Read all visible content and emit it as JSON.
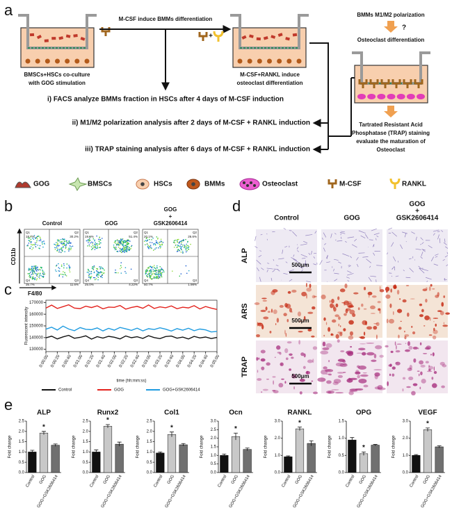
{
  "panel_labels": {
    "a": "a",
    "b": "b",
    "c": "c",
    "d": "d",
    "e": "e"
  },
  "panel_a": {
    "arrow_top": "M-CSF induce BMMs differentiation",
    "well1": [
      "BMSCs+HSCs co-culture",
      "with GOG stimulation"
    ],
    "plus": "+",
    "well2": [
      "M-CSF+RANKL induce",
      "osteoclast differentiation"
    ],
    "polarization": "BMMs M1/M2 polarization",
    "question": "?",
    "osteoclast": "Osteoclast differentiation",
    "trap": [
      "Tartrated Resistant Acid",
      "Phosphatase (TRAP) staining",
      "evaluate the maturation of",
      "Osteoclast"
    ],
    "steps": [
      "i) FACS analyze BMMs fraction in HSCs after 4 days of M-CSF induction",
      "ii) M1/M2 polarization analysis after 2 days of M-CSF + RANKL induction",
      "iii) TRAP staining analysis after 6 days of M-CSF + RANKL induction"
    ]
  },
  "legend": [
    "GOG",
    "BMSCs",
    "HSCs",
    "BMMs",
    "Osteoclast",
    "M-CSF",
    "RANKL"
  ],
  "panel_b": {
    "xlabel": "F4/80",
    "ylabel": "CD11b",
    "quadrant_names": [
      "Q1",
      "Q2",
      "Q3",
      "Q4"
    ],
    "columns": [
      {
        "title": [
          "Control"
        ],
        "quadrants": [
          "18.7%",
          "30.2%",
          "11.6%",
          "35.7%"
        ]
      },
      {
        "title": [
          "GOG"
        ],
        "quadrants": [
          "19.6%",
          "51.4%",
          "4.22%",
          "25.0%"
        ]
      },
      {
        "title": [
          "GOG",
          "+",
          "GSK2606414"
        ],
        "quadrants": [
          "20.1%",
          "26.6%",
          "1.98%",
          "50.7%"
        ]
      }
    ]
  },
  "panel_d": {
    "columns": [
      [
        "Control"
      ],
      [
        "GOG"
      ],
      [
        "GOG",
        "+",
        "GSK2606414"
      ]
    ],
    "rows": [
      "ALP",
      "ARS",
      "TRAP"
    ],
    "scale_bar": "500μm"
  },
  "chart_data": [
    {
      "type": "line",
      "ylabel": "Fluorescent intensity",
      "xlabel": "time (hh:mm:ss)",
      "x": [
        0,
        10,
        20,
        30,
        40,
        50,
        60,
        70,
        80,
        90,
        100,
        110,
        120,
        130,
        140,
        150,
        160,
        170,
        180,
        190,
        200,
        210,
        220,
        230,
        240,
        250,
        260,
        270,
        280,
        290,
        300
      ],
      "xlim": [
        0,
        300
      ],
      "xticks": [
        {
          "value": 0,
          "label": "0:00:00"
        },
        {
          "value": 20,
          "label": "0:00:20"
        },
        {
          "value": 40,
          "label": "0:00:40"
        },
        {
          "value": 60,
          "label": "0:01:00"
        },
        {
          "value": 80,
          "label": "0:01:20"
        },
        {
          "value": 100,
          "label": "0:01:40"
        },
        {
          "value": 120,
          "label": "0:02:00"
        },
        {
          "value": 140,
          "label": "0:02:20"
        },
        {
          "value": 160,
          "label": "0:02:40"
        },
        {
          "value": 180,
          "label": "0:03:00"
        },
        {
          "value": 200,
          "label": "0:03:20"
        },
        {
          "value": 220,
          "label": "0:03:40"
        },
        {
          "value": 240,
          "label": "0:04:00"
        },
        {
          "value": 260,
          "label": "0:04:20"
        },
        {
          "value": 280,
          "label": "0:04:40"
        },
        {
          "value": 300,
          "label": "0:05:00"
        }
      ],
      "ylim": [
        128000,
        172000
      ],
      "yticks": [
        130000,
        140000,
        150000,
        160000,
        170000
      ],
      "series": [
        {
          "name": "Control",
          "color": "#111111",
          "values": [
            139800,
            141200,
            138900,
            140600,
            141900,
            139400,
            140200,
            141500,
            138700,
            140800,
            139600,
            141100,
            140300,
            138900,
            141400,
            139900,
            140700,
            139300,
            141600,
            140000,
            139100,
            140900,
            141300,
            139500,
            140400,
            138800,
            141000,
            139700,
            140500,
            139200,
            140100
          ]
        },
        {
          "name": "GOG",
          "color": "#e3211c",
          "values": [
            165200,
            167800,
            164900,
            166500,
            168100,
            165300,
            164800,
            166900,
            165700,
            167200,
            164600,
            166100,
            165900,
            167500,
            164300,
            165800,
            166700,
            165100,
            167900,
            164900,
            166300,
            165500,
            167100,
            164700,
            166000,
            165400,
            167300,
            164500,
            166600,
            165200,
            164100
          ]
        },
        {
          "name": "GOG+GSK2606414",
          "color": "#1e9be0",
          "values": [
            147200,
            148900,
            146500,
            149800,
            147300,
            145900,
            148600,
            147100,
            146800,
            148300,
            145700,
            147900,
            146400,
            148700,
            147500,
            146200,
            148100,
            145800,
            147600,
            146900,
            148400,
            147200,
            145600,
            147700,
            146300,
            148000,
            145900,
            147300,
            146600,
            144800,
            145300
          ]
        }
      ]
    },
    {
      "type": "bar",
      "title": "ALP",
      "ylabel": "Fold change",
      "categories": [
        "Control",
        "GOG",
        "GOG+GSK2606414"
      ],
      "colors": [
        "#111111",
        "#c8c8c8",
        "#707070"
      ],
      "values": [
        1.0,
        1.92,
        1.33
      ],
      "errors": [
        0.08,
        0.08,
        0.06
      ],
      "ylim": [
        0,
        2.5
      ],
      "yticks": [
        {
          "value": 0,
          "label": "0.0"
        },
        {
          "value": 0.5,
          "label": "0.5"
        },
        {
          "value": 1,
          "label": "1.0"
        },
        {
          "value": 1.5,
          "label": "1.5"
        },
        {
          "value": 2,
          "label": "2.0"
        },
        {
          "value": 2.5,
          "label": "2.5"
        }
      ],
      "annotations": [
        {
          "category": "GOG",
          "text": "*"
        }
      ]
    },
    {
      "type": "bar",
      "title": "Runx2",
      "ylabel": "Fold change",
      "categories": [
        "Control",
        "GOG",
        "GOG+GSK2606414"
      ],
      "colors": [
        "#111111",
        "#c8c8c8",
        "#707070"
      ],
      "values": [
        1.0,
        2.25,
        1.38
      ],
      "errors": [
        0.1,
        0.08,
        0.1
      ],
      "ylim": [
        0,
        2.5
      ],
      "yticks": [
        {
          "value": 0,
          "label": "0.0"
        },
        {
          "value": 0.5,
          "label": "0.5"
        },
        {
          "value": 1,
          "label": "1.0"
        },
        {
          "value": 1.5,
          "label": "1.5"
        },
        {
          "value": 2,
          "label": "2.0"
        },
        {
          "value": 2.5,
          "label": "2.5"
        }
      ],
      "annotations": [
        {
          "category": "GOG",
          "text": "*"
        }
      ]
    },
    {
      "type": "bar",
      "title": "Col1",
      "ylabel": "Fold change",
      "categories": [
        "Control",
        "GOG",
        "GOG+GSK2606414"
      ],
      "colors": [
        "#111111",
        "#c8c8c8",
        "#707070"
      ],
      "values": [
        0.95,
        1.85,
        1.35
      ],
      "errors": [
        0.05,
        0.12,
        0.06
      ],
      "ylim": [
        0,
        2.5
      ],
      "yticks": [
        {
          "value": 0,
          "label": "0.0"
        },
        {
          "value": 0.5,
          "label": "0.5"
        },
        {
          "value": 1,
          "label": "1.0"
        },
        {
          "value": 1.5,
          "label": "1.5"
        },
        {
          "value": 2,
          "label": "2.0"
        },
        {
          "value": 2.5,
          "label": "2.5"
        }
      ],
      "annotations": [
        {
          "category": "GOG",
          "text": "*"
        }
      ]
    },
    {
      "type": "bar",
      "title": "Ocn",
      "ylabel": "Fold change",
      "categories": [
        "Control",
        "GOG",
        "GOG+GSK2606414"
      ],
      "colors": [
        "#111111",
        "#c8c8c8",
        "#707070"
      ],
      "values": [
        1.0,
        2.1,
        1.35
      ],
      "errors": [
        0.08,
        0.2,
        0.08
      ],
      "ylim": [
        0,
        3
      ],
      "yticks": [
        {
          "value": 0,
          "label": "0.0"
        },
        {
          "value": 0.5,
          "label": "0.5"
        },
        {
          "value": 1,
          "label": "1.0"
        },
        {
          "value": 1.5,
          "label": "1.5"
        },
        {
          "value": 2,
          "label": "2.0"
        },
        {
          "value": 2.5,
          "label": "2.5"
        },
        {
          "value": 3,
          "label": "3.0"
        }
      ],
      "annotations": [
        {
          "category": "GOG",
          "text": "*"
        }
      ]
    },
    {
      "type": "bar",
      "title": "RANKL",
      "ylabel": "Fold change",
      "categories": [
        "Control",
        "GOG",
        "GOG+GSK2606414"
      ],
      "colors": [
        "#111111",
        "#c8c8c8",
        "#707070"
      ],
      "values": [
        0.92,
        2.55,
        1.7
      ],
      "errors": [
        0.05,
        0.1,
        0.15
      ],
      "ylim": [
        0,
        3
      ],
      "yticks": [
        {
          "value": 0,
          "label": "0.0"
        },
        {
          "value": 1,
          "label": "1.0"
        },
        {
          "value": 2,
          "label": "2.0"
        },
        {
          "value": 3,
          "label": "3.0"
        }
      ],
      "annotations": [
        {
          "category": "GOG",
          "text": "*"
        }
      ]
    },
    {
      "type": "bar",
      "title": "OPG",
      "ylabel": "Fold change",
      "categories": [
        "Control",
        "GOG",
        "GOG+GSK2606414"
      ],
      "colors": [
        "#111111",
        "#c8c8c8",
        "#707070"
      ],
      "values": [
        0.95,
        0.55,
        0.8
      ],
      "errors": [
        0.07,
        0.05,
        0.02
      ],
      "ylim": [
        0,
        1.5
      ],
      "yticks": [
        {
          "value": 0,
          "label": "0.0"
        },
        {
          "value": 0.5,
          "label": "0.5"
        },
        {
          "value": 1,
          "label": "1.0"
        },
        {
          "value": 1.5,
          "label": "1.5"
        }
      ],
      "annotations": [
        {
          "category": "GOG",
          "text": "*"
        }
      ]
    },
    {
      "type": "bar",
      "title": "VEGF",
      "ylabel": "Fold change",
      "categories": [
        "Control",
        "GOG",
        "GOG+GSK2606414"
      ],
      "colors": [
        "#111111",
        "#c8c8c8",
        "#707070"
      ],
      "values": [
        1.0,
        2.5,
        1.5
      ],
      "errors": [
        0.05,
        0.1,
        0.06
      ],
      "ylim": [
        0,
        3
      ],
      "yticks": [
        {
          "value": 0,
          "label": "0.0"
        },
        {
          "value": 1,
          "label": "1.0"
        },
        {
          "value": 2,
          "label": "2.0"
        },
        {
          "value": 3,
          "label": "3.0"
        }
      ],
      "annotations": [
        {
          "category": "GOG",
          "text": "*"
        }
      ]
    }
  ]
}
